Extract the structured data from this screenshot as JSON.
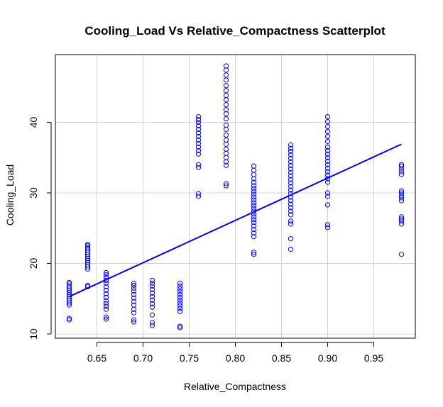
{
  "chart_data": {
    "type": "scatter",
    "title": "Cooling_Load Vs Relative_Compactness Scatterplot",
    "xlabel": "Relative_Compactness",
    "ylabel": "Cooling_Load",
    "xlim": [
      0.605,
      0.995
    ],
    "ylim": [
      9.4,
      49.6
    ],
    "x_ticks": [
      "0.65",
      "0.70",
      "0.75",
      "0.80",
      "0.85",
      "0.90",
      "0.95"
    ],
    "y_ticks": [
      "10",
      "20",
      "30",
      "40"
    ],
    "grid": true,
    "legend": "none",
    "point_color": "#0000ff",
    "line_color": "#0000ff",
    "points": [
      {
        "x": 0.62,
        "ys": [
          12.0,
          12.2,
          14.1,
          14.4,
          14.7,
          15.0,
          15.3,
          15.6,
          15.9,
          16.2,
          16.5,
          16.8,
          17.1,
          17.3
        ]
      },
      {
        "x": 0.64,
        "ys": [
          16.7,
          16.9,
          19.2,
          19.5,
          19.8,
          20.1,
          20.4,
          20.7,
          21.0,
          21.3,
          21.6,
          21.9,
          22.2,
          22.5,
          22.7
        ]
      },
      {
        "x": 0.66,
        "ys": [
          12.1,
          12.4,
          13.5,
          13.9,
          14.3,
          14.7,
          15.2,
          15.7,
          16.2,
          16.7,
          17.2,
          17.6,
          18.0,
          18.4,
          18.7
        ]
      },
      {
        "x": 0.69,
        "ys": [
          11.7,
          12.0,
          13.0,
          13.5,
          14.1,
          14.6,
          15.1,
          15.6,
          16.1,
          16.5,
          16.9,
          17.2
        ]
      },
      {
        "x": 0.71,
        "ys": [
          11.2,
          11.6,
          12.7,
          13.8,
          14.3,
          14.8,
          15.3,
          15.8,
          16.3,
          16.8,
          17.2,
          17.6
        ]
      },
      {
        "x": 0.74,
        "ys": [
          10.9,
          11.1,
          13.2,
          13.6,
          14.0,
          14.4,
          14.8,
          15.2,
          15.6,
          16.0,
          16.4,
          16.8,
          17.2
        ]
      },
      {
        "x": 0.76,
        "ys": [
          29.5,
          29.9,
          33.6,
          34.0,
          35.5,
          36.0,
          36.5,
          37.0,
          37.5,
          38.0,
          38.5,
          39.0,
          39.5,
          40.0,
          40.4,
          40.8
        ]
      },
      {
        "x": 0.79,
        "ys": [
          31.0,
          31.3,
          33.9,
          34.4,
          35.0,
          35.6,
          36.2,
          36.9,
          37.5,
          38.2,
          39.0,
          39.6,
          40.5,
          41.2,
          41.8,
          42.5,
          43.2,
          43.8,
          44.5,
          45.2,
          46.0,
          46.7,
          47.4,
          48.0
        ]
      },
      {
        "x": 0.82,
        "ys": [
          21.3,
          21.6,
          23.8,
          24.3,
          24.8,
          25.3,
          25.8,
          26.2,
          26.6,
          27.0,
          27.4,
          27.8,
          28.2,
          28.6,
          29.0,
          29.4,
          29.8,
          30.2,
          30.6,
          31.0,
          31.5,
          32.0,
          32.6,
          33.2,
          33.8
        ]
      },
      {
        "x": 0.86,
        "ys": [
          22.0,
          23.5,
          25.6,
          26.0,
          26.9,
          27.4,
          27.9,
          28.4,
          28.9,
          29.4,
          29.9,
          30.4,
          30.9,
          31.4,
          31.9,
          32.4,
          32.9,
          33.4,
          33.9,
          34.4,
          34.9,
          35.4,
          35.9,
          36.3,
          36.8
        ]
      },
      {
        "x": 0.9,
        "ys": [
          25.1,
          25.5,
          28.3,
          29.5,
          30.0,
          31.5,
          32.0,
          32.5,
          33.0,
          33.5,
          34.0,
          34.5,
          35.0,
          35.5,
          36.0,
          36.5,
          37.3,
          38.0,
          38.7,
          39.4,
          40.1,
          40.8
        ]
      },
      {
        "x": 0.98,
        "ys": [
          21.3,
          25.6,
          26.0,
          26.3,
          26.6,
          28.9,
          29.3,
          29.6,
          30.0,
          30.3,
          32.6,
          33.0,
          33.4,
          33.8,
          34.0
        ]
      }
    ],
    "fit_line": {
      "x": [
        0.62,
        0.98
      ],
      "y": [
        15.3,
        36.9
      ]
    }
  }
}
